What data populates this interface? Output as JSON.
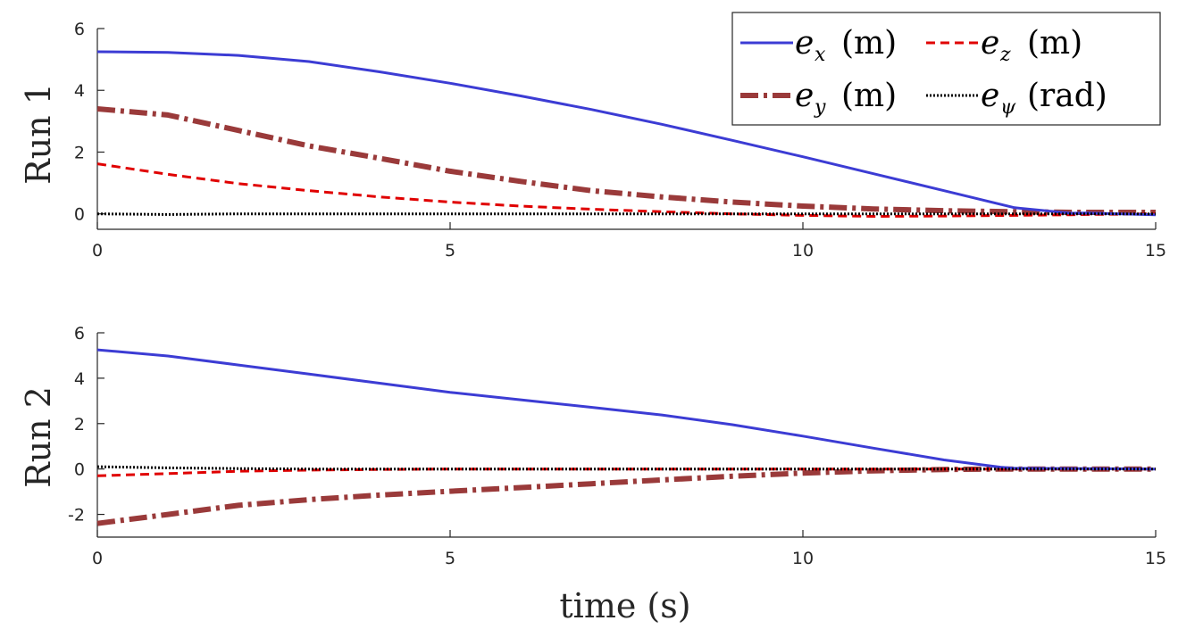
{
  "chart_data": [
    {
      "type": "line",
      "ylabel": "Run 1",
      "xlabel": "",
      "xlim": [
        0,
        15
      ],
      "ylim": [
        -0.5,
        6
      ],
      "xticks": [
        "0",
        "5",
        "10",
        "15"
      ],
      "yticks": [
        "0",
        "2",
        "4",
        "6"
      ],
      "ytick_values": [
        0,
        2,
        4,
        6
      ],
      "x": [
        0,
        1,
        2,
        3,
        4,
        5,
        6,
        7,
        8,
        9,
        10,
        11,
        12,
        13,
        13.8,
        14,
        15
      ],
      "series": [
        {
          "name": "e_x (m)",
          "color": "#3c3cd4",
          "style": "solid",
          "values": [
            5.25,
            5.23,
            5.13,
            4.93,
            4.6,
            4.23,
            3.82,
            3.38,
            2.9,
            2.38,
            1.85,
            1.3,
            0.75,
            0.2,
            0.02,
            0.03,
            -0.03
          ]
        },
        {
          "name": "e_y (m)",
          "color": "#9a3a3a",
          "style": "dashdot",
          "values": [
            3.4,
            3.2,
            2.7,
            2.2,
            1.8,
            1.38,
            1.05,
            0.75,
            0.55,
            0.38,
            0.25,
            0.16,
            0.1,
            0.07,
            0.05,
            0.05,
            0.05
          ]
        },
        {
          "name": "e_z (m)",
          "color": "#e00000",
          "style": "dashed",
          "values": [
            1.62,
            1.28,
            0.98,
            0.75,
            0.55,
            0.38,
            0.25,
            0.15,
            0.07,
            0.0,
            -0.05,
            -0.08,
            -0.07,
            -0.05,
            -0.03,
            -0.02,
            0.0
          ]
        },
        {
          "name": "e_ψ (rad)",
          "color": "#000000",
          "style": "dotted",
          "values": [
            0.0,
            -0.02,
            0.0,
            0.0,
            0.0,
            0.0,
            0.0,
            0.0,
            0.0,
            0.0,
            0.0,
            0.0,
            0.0,
            0.0,
            0.0,
            0.0,
            0.0
          ]
        }
      ]
    },
    {
      "type": "line",
      "ylabel": "Run 2",
      "xlabel": "time (s)",
      "xlim": [
        0,
        15
      ],
      "ylim": [
        -3,
        6
      ],
      "xticks": [
        "0",
        "5",
        "10",
        "15"
      ],
      "yticks": [
        "-2",
        "0",
        "2",
        "4",
        "6"
      ],
      "ytick_values": [
        -2,
        0,
        2,
        4,
        6
      ],
      "x": [
        0,
        1,
        2,
        3,
        4,
        5,
        6,
        7,
        8,
        9,
        10,
        11,
        12,
        12.8,
        13,
        14,
        15
      ],
      "series": [
        {
          "name": "e_x (m)",
          "color": "#3c3cd4",
          "style": "solid",
          "values": [
            5.25,
            4.98,
            4.58,
            4.18,
            3.78,
            3.38,
            3.05,
            2.72,
            2.38,
            1.95,
            1.45,
            0.92,
            0.4,
            0.08,
            0.03,
            0.02,
            0.0
          ]
        },
        {
          "name": "e_y (m)",
          "color": "#9a3a3a",
          "style": "dashdot",
          "values": [
            -2.4,
            -2.0,
            -1.6,
            -1.35,
            -1.15,
            -0.98,
            -0.82,
            -0.65,
            -0.48,
            -0.32,
            -0.18,
            -0.08,
            -0.02,
            0.0,
            0.0,
            0.0,
            0.0
          ]
        },
        {
          "name": "e_z (m)",
          "color": "#e00000",
          "style": "dashed",
          "values": [
            -0.3,
            -0.2,
            -0.1,
            -0.05,
            -0.02,
            0.0,
            0.0,
            0.0,
            0.0,
            0.0,
            0.0,
            0.0,
            0.0,
            0.0,
            0.0,
            0.0,
            0.0
          ]
        },
        {
          "name": "e_ψ (rad)",
          "color": "#000000",
          "style": "dotted",
          "values": [
            0.1,
            0.05,
            0.02,
            0.0,
            0.0,
            0.0,
            0.0,
            0.0,
            0.0,
            0.0,
            0.0,
            0.0,
            0.0,
            0.0,
            0.0,
            0.0,
            0.0
          ]
        }
      ]
    }
  ],
  "legend": {
    "placement": "top-right",
    "entries": [
      {
        "symbol": "e",
        "sub": "x",
        "unit": "(m)"
      },
      {
        "symbol": "e",
        "sub": "z",
        "unit": "(m)"
      },
      {
        "symbol": "e",
        "sub": "y",
        "unit": "(m)"
      },
      {
        "symbol": "e",
        "sub": "ψ",
        "unit": "(rad)"
      }
    ]
  }
}
